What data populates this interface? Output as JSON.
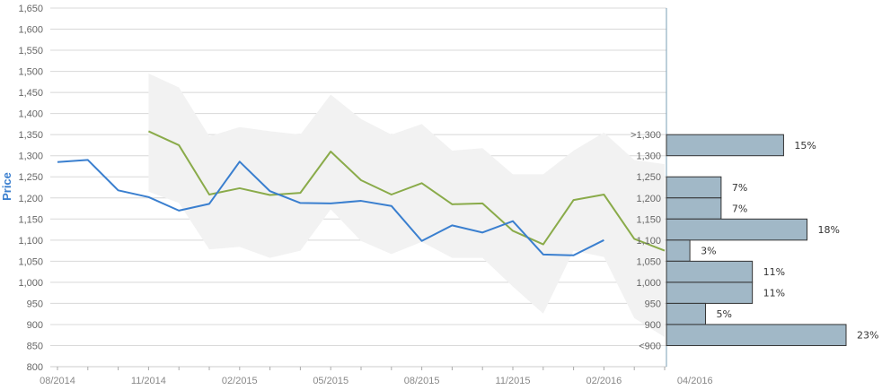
{
  "chart_data": {
    "type": "line",
    "title": "",
    "ylabel": "Price",
    "ylim": [
      800,
      1650
    ],
    "y_ticks": [
      800,
      850,
      900,
      950,
      1000,
      1050,
      1100,
      1150,
      1200,
      1250,
      1300,
      1350,
      1400,
      1450,
      1500,
      1550,
      1600,
      1650
    ],
    "x_tick_labels": [
      "08/2014",
      "11/2014",
      "02/2015",
      "05/2015",
      "08/2015",
      "11/2015",
      "02/2016",
      "04/2016"
    ],
    "grid": true,
    "colors": {
      "price": "#3a7fcf",
      "forecast": "#8aab4a",
      "band": "#f2f2f2",
      "bars": "#a1b8c7",
      "bar_border": "#333333",
      "axis": "#7a9fb5",
      "ylabel": "#3a7fcf"
    },
    "series": [
      {
        "key": "price",
        "values": [
          1285,
          1290,
          1218,
          1202,
          1170,
          1186,
          1286,
          1216,
          1188,
          1187,
          1193,
          1181,
          1098,
          1135,
          1118,
          1145,
          1066,
          1064,
          1100
        ]
      },
      {
        "key": "forecast",
        "values": [
          null,
          null,
          null,
          1358,
          1325,
          1208,
          1223,
          1207,
          1212,
          1310,
          1242,
          1208,
          1235,
          1185,
          1187,
          1122,
          1090,
          1195,
          1208,
          1103,
          1075
        ]
      }
    ],
    "band": {
      "upper": [
        null,
        null,
        null,
        1495,
        1462,
        1346,
        1368,
        1358,
        1350,
        1445,
        1387,
        1350,
        1375,
        1312,
        1318,
        1256,
        1256,
        1312,
        1355,
        1290,
        1280
      ],
      "lower": [
        null,
        null,
        null,
        1215,
        1188,
        1078,
        1084,
        1058,
        1075,
        1173,
        1098,
        1067,
        1096,
        1058,
        1058,
        990,
        926,
        1075,
        1060,
        915,
        870
      ]
    },
    "distribution": {
      "tick_labels": [
        ">1,300",
        "1,300",
        "1,250",
        "1,200",
        "1,150",
        "1,100",
        "1,050",
        "1,000",
        "950",
        "900",
        "<900"
      ],
      "bins": [
        {
          "low": 1300,
          "high": 1350,
          "percent": 15,
          "label": "15%"
        },
        {
          "low": 1250,
          "high": 1300,
          "percent": 0,
          "label": ""
        },
        {
          "low": 1200,
          "high": 1250,
          "percent": 7,
          "label": "7%"
        },
        {
          "low": 1150,
          "high": 1200,
          "percent": 7,
          "label": "7%"
        },
        {
          "low": 1100,
          "high": 1150,
          "percent": 18,
          "label": "18%"
        },
        {
          "low": 1050,
          "high": 1100,
          "percent": 3,
          "label": "3%"
        },
        {
          "low": 1000,
          "high": 1050,
          "percent": 11,
          "label": "11%"
        },
        {
          "low": 950,
          "high": 1000,
          "percent": 11,
          "label": "11%"
        },
        {
          "low": 900,
          "high": 950,
          "percent": 5,
          "label": "5%"
        },
        {
          "low": 850,
          "high": 900,
          "percent": 23,
          "label": "23%"
        }
      ]
    }
  }
}
